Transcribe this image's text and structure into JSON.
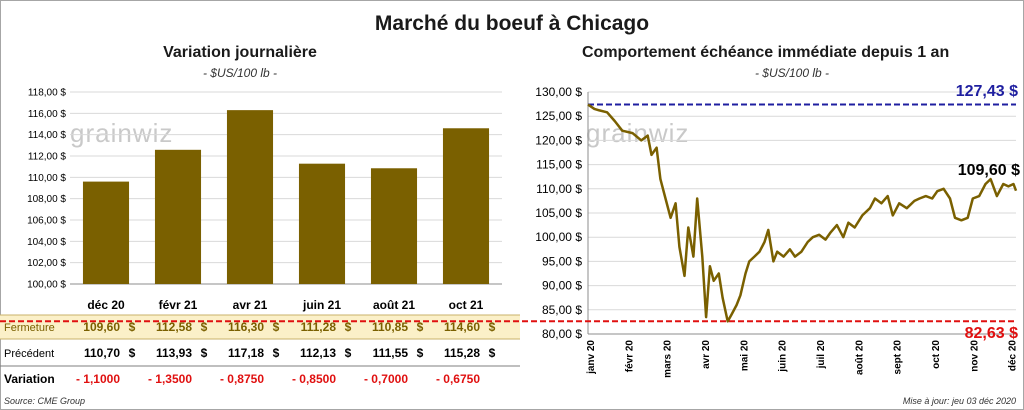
{
  "title": "Marché du boeuf à Chicago",
  "left": {
    "title": "Variation  journalière",
    "subtitle": "- $US/100 lb -",
    "watermark": "grainwiz"
  },
  "right": {
    "title": "Comportement  échéance immédiate depuis 1 an",
    "subtitle": "- $US/100 lb -",
    "watermark": "grainwiz",
    "last_label": "109,60 $",
    "max_label": "127,43 $",
    "min_label": "82,63 $"
  },
  "table": {
    "rows": [
      {
        "label": "Fermeture",
        "values": [
          "109,60",
          "112,58",
          "116,30",
          "111,28",
          "110,85",
          "114,60"
        ],
        "unit": "$"
      },
      {
        "label": "Précédent",
        "values": [
          "110,70",
          "113,93",
          "117,18",
          "112,13",
          "111,55",
          "115,28"
        ],
        "unit": "$"
      },
      {
        "label": "Variation",
        "values": [
          "- 1,1000",
          "- 1,3500",
          "- 0,8750",
          "- 0,8500",
          "- 0,7000",
          "- 0,6750"
        ],
        "unit": ""
      }
    ]
  },
  "footer": {
    "source": "Source: CME Group",
    "updated": "Mise à jour: jeu 03 déc 2020"
  },
  "colors": {
    "bar": "#7a6000",
    "line": "#7a6000",
    "max": "#1f1fa0",
    "min": "#e01010",
    "fermeture_band": "#fbf0c8",
    "variation_text": "#e01010"
  },
  "chart_data": [
    {
      "type": "bar",
      "categories": [
        "déc 20",
        "févr 21",
        "avr 21",
        "juin 21",
        "août 21",
        "oct 21"
      ],
      "values": [
        109.6,
        112.58,
        116.3,
        111.28,
        110.85,
        114.6
      ],
      "ylim": [
        100,
        118
      ],
      "yticks": [
        100,
        102,
        104,
        106,
        108,
        110,
        112,
        114,
        116,
        118
      ],
      "ytick_labels": [
        "100,00 $",
        "102,00 $",
        "104,00 $",
        "106,00 $",
        "108,00 $",
        "110,00 $",
        "112,00 $",
        "114,00 $",
        "116,00 $",
        "118,00 $"
      ],
      "grid": true
    },
    {
      "type": "line",
      "xlim": [
        "2020-01-01",
        "2020-12-03"
      ],
      "x_ticks": [
        "janv 20",
        "févr 20",
        "mars 20",
        "avr 20",
        "mai 20",
        "juin 20",
        "juil 20",
        "août 20",
        "sept 20",
        "oct 20",
        "nov 20",
        "déc 20"
      ],
      "ylim": [
        80,
        130
      ],
      "yticks": [
        80,
        85,
        90,
        95,
        100,
        105,
        110,
        115,
        120,
        125,
        130
      ],
      "ytick_labels": [
        "80,00 $",
        "85,00 $",
        "90,00 $",
        "95,00 $",
        "100,00 $",
        "105,00 $",
        "110,00 $",
        "115,00 $",
        "120,00 $",
        "125,00 $",
        "130,00 $"
      ],
      "max_line": 127.43,
      "min_line": 82.63,
      "grid": true,
      "x": [
        "2020-01-01",
        "2020-01-06",
        "2020-01-10",
        "2020-01-16",
        "2020-01-22",
        "2020-01-28",
        "2020-02-05",
        "2020-02-12",
        "2020-02-17",
        "2020-02-20",
        "2020-02-24",
        "2020-02-27",
        "2020-03-02",
        "2020-03-06",
        "2020-03-10",
        "2020-03-13",
        "2020-03-17",
        "2020-03-20",
        "2020-03-24",
        "2020-03-27",
        "2020-03-31",
        "2020-04-03",
        "2020-04-06",
        "2020-04-09",
        "2020-04-13",
        "2020-04-16",
        "2020-04-20",
        "2020-04-23",
        "2020-04-27",
        "2020-04-30",
        "2020-05-04",
        "2020-05-07",
        "2020-05-11",
        "2020-05-15",
        "2020-05-19",
        "2020-05-22",
        "2020-05-26",
        "2020-05-29",
        "2020-06-03",
        "2020-06-08",
        "2020-06-12",
        "2020-06-17",
        "2020-06-22",
        "2020-06-26",
        "2020-07-01",
        "2020-07-06",
        "2020-07-10",
        "2020-07-15",
        "2020-07-20",
        "2020-07-24",
        "2020-07-29",
        "2020-08-04",
        "2020-08-10",
        "2020-08-14",
        "2020-08-19",
        "2020-08-24",
        "2020-08-28",
        "2020-09-02",
        "2020-09-08",
        "2020-09-14",
        "2020-09-18",
        "2020-09-23",
        "2020-09-28",
        "2020-10-02",
        "2020-10-07",
        "2020-10-12",
        "2020-10-16",
        "2020-10-21",
        "2020-10-26",
        "2020-10-30",
        "2020-11-04",
        "2020-11-09",
        "2020-11-13",
        "2020-11-18",
        "2020-11-23",
        "2020-11-27",
        "2020-12-01",
        "2020-12-03"
      ],
      "y": [
        127.4,
        126.5,
        126.2,
        125.8,
        124.0,
        122.0,
        121.5,
        120.0,
        121.0,
        117.0,
        118.5,
        112.0,
        108.0,
        104.0,
        107.0,
        98.0,
        92.0,
        102.0,
        96.0,
        108.0,
        96.0,
        83.5,
        94.0,
        91.0,
        92.5,
        87.5,
        82.6,
        84.0,
        86.0,
        88.0,
        92.5,
        95.0,
        96.0,
        97.0,
        99.0,
        101.5,
        95.0,
        97.0,
        96.0,
        97.5,
        96.0,
        97.0,
        99.0,
        100.0,
        100.5,
        99.5,
        101.0,
        102.5,
        100.0,
        103.0,
        102.0,
        104.5,
        106.0,
        108.0,
        107.0,
        108.5,
        104.5,
        107.0,
        106.0,
        107.5,
        108.0,
        108.5,
        108.0,
        109.5,
        110.0,
        108.0,
        104.0,
        103.5,
        104.0,
        108.0,
        108.5,
        111.0,
        112.0,
        108.5,
        111.0,
        110.5,
        111.0,
        109.6
      ]
    }
  ]
}
